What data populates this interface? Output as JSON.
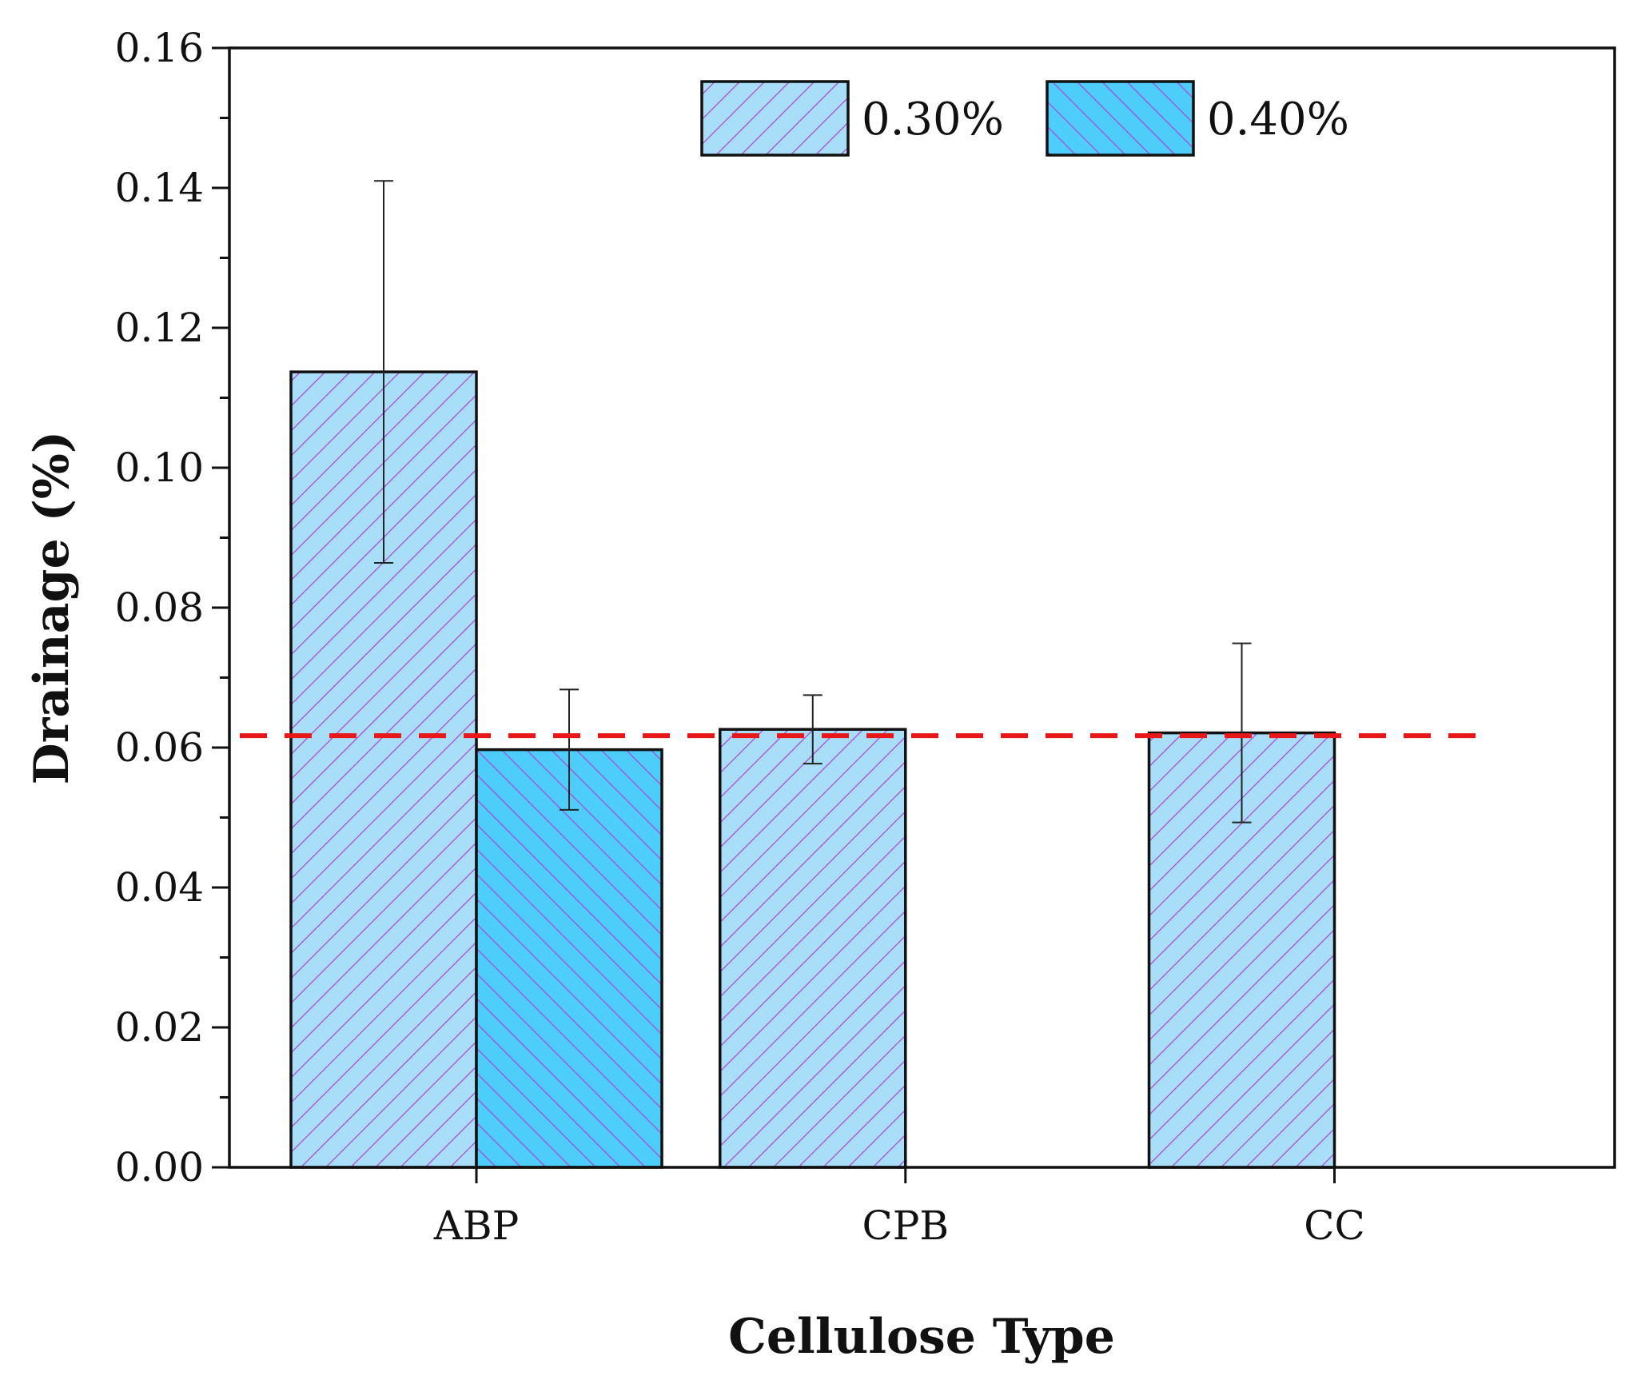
{
  "chart_data": {
    "type": "bar",
    "title": "",
    "xlabel": "Cellulose Type",
    "ylabel": "Drainage (%)",
    "categories": [
      "ABP",
      "CPB",
      "CC"
    ],
    "ylim": [
      0,
      0.16
    ],
    "yticks": [
      "0.00",
      "0.02",
      "0.04",
      "0.06",
      "0.08",
      "0.10",
      "0.12",
      "0.14",
      "0.16"
    ],
    "series": [
      {
        "name": "0.30%",
        "values": [
          0.1137,
          0.0626,
          0.0621
        ],
        "errors": [
          0.0273,
          0.0049,
          0.0128
        ],
        "color": "#a8def8",
        "hatch": "forward-diagonal",
        "hatch_color": "#b040e0"
      },
      {
        "name": "0.40%",
        "values": [
          0.0597,
          null,
          null
        ],
        "errors": [
          0.0086,
          null,
          null
        ],
        "color": "#4dcdfa",
        "hatch": "backward-diagonal",
        "hatch_color": "#b040e0"
      }
    ],
    "reference_line": {
      "value": 0.0617,
      "color": "#e81818",
      "style": "dashed"
    },
    "legend_placement": "top-right",
    "grid": false
  }
}
